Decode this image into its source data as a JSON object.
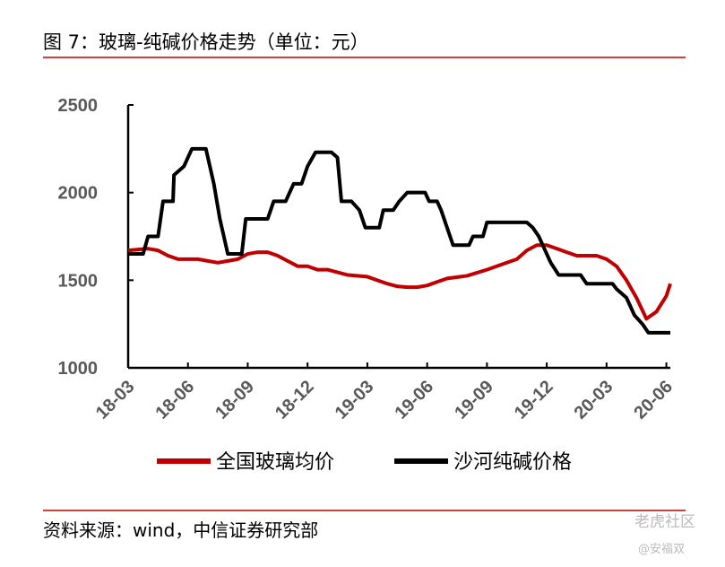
{
  "chart_data": {
    "type": "line",
    "title": "图 7：玻璃-纯碱价格走势（单位：元）",
    "source": "资料来源：wind，中信证券研究部",
    "watermark": "老虎社区",
    "watermark_user": "@安福双",
    "xlim": [
      0,
      27.2
    ],
    "xticks": [
      {
        "value": 0,
        "label": "18-03"
      },
      {
        "value": 3,
        "label": "18-06"
      },
      {
        "value": 6,
        "label": "18-09"
      },
      {
        "value": 9,
        "label": "18-12"
      },
      {
        "value": 12,
        "label": "19-03"
      },
      {
        "value": 15,
        "label": "19-06"
      },
      {
        "value": 18,
        "label": "19-09"
      },
      {
        "value": 21,
        "label": "19-12"
      },
      {
        "value": 24,
        "label": "20-03"
      },
      {
        "value": 27,
        "label": "20-06"
      }
    ],
    "ylim": [
      1000,
      2500
    ],
    "yticks": [
      1000,
      1500,
      2000,
      2500
    ],
    "series": [
      {
        "name": "全国玻璃均价",
        "color": "#c00000",
        "x": [
          0,
          1,
          1.5,
          2,
          2.5,
          3.5,
          4,
          4.5,
          5,
          5.5,
          6,
          6.5,
          7,
          7.5,
          8,
          8.5,
          9,
          9.5,
          10,
          11,
          12,
          12.5,
          13,
          13.5,
          14,
          14.5,
          15,
          15.5,
          16,
          17,
          18,
          19,
          19.5,
          20,
          20.5,
          21,
          21.5,
          22,
          22.5,
          23.5,
          24,
          24.5,
          25,
          25.5,
          26,
          26.5,
          27,
          27.2
        ],
        "values": [
          1670,
          1680,
          1670,
          1640,
          1620,
          1620,
          1610,
          1600,
          1610,
          1620,
          1650,
          1660,
          1660,
          1640,
          1610,
          1580,
          1580,
          1560,
          1560,
          1530,
          1520,
          1500,
          1480,
          1465,
          1460,
          1460,
          1470,
          1490,
          1510,
          1525,
          1560,
          1600,
          1620,
          1670,
          1700,
          1700,
          1680,
          1660,
          1640,
          1640,
          1620,
          1580,
          1500,
          1400,
          1280,
          1320,
          1410,
          1480
        ]
      },
      {
        "name": "沙河纯碱价格",
        "color": "#000000",
        "x": [
          0,
          0.75,
          1,
          1.5,
          1.75,
          2.25,
          2.3,
          2.8,
          3,
          3.2,
          3.9,
          4.3,
          4.6,
          5,
          5.7,
          5.9,
          7,
          7.3,
          7.9,
          8.3,
          8.7,
          9,
          9.4,
          10.2,
          10.5,
          10.7,
          11.2,
          11.6,
          11.9,
          12.6,
          12.8,
          13.3,
          13.6,
          14,
          14.9,
          15.1,
          15.5,
          15.7,
          16,
          16.3,
          17.1,
          17.3,
          17.8,
          18,
          20,
          20.3,
          20.6,
          21,
          21.2,
          21.6,
          22.3,
          22.7,
          23,
          24.3,
          24.5,
          25,
          25.2,
          25.4,
          25.8,
          26.1,
          27.2
        ],
        "values": [
          1650,
          1650,
          1750,
          1750,
          1950,
          1950,
          2100,
          2150,
          2200,
          2250,
          2250,
          2050,
          1850,
          1650,
          1650,
          1850,
          1850,
          1950,
          1950,
          2050,
          2050,
          2150,
          2230,
          2230,
          2200,
          1950,
          1950,
          1900,
          1800,
          1800,
          1900,
          1900,
          1950,
          2000,
          2000,
          1950,
          1950,
          1900,
          1800,
          1700,
          1700,
          1750,
          1750,
          1830,
          1830,
          1800,
          1750,
          1650,
          1600,
          1530,
          1530,
          1530,
          1480,
          1480,
          1450,
          1400,
          1350,
          1300,
          1250,
          1200,
          1200
        ]
      }
    ]
  }
}
